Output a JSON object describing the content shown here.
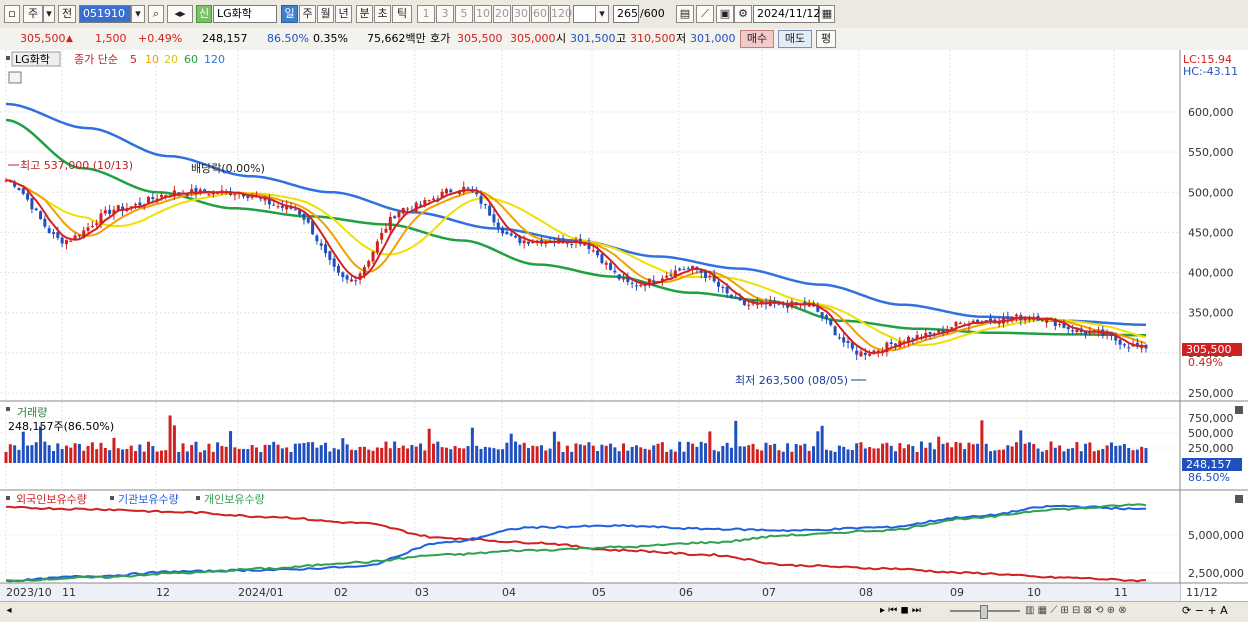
{
  "toolbar": {
    "period_label": "주",
    "prev_label": "전",
    "stock_code": "051910",
    "badge_label": "신",
    "stock_name": "LG화학",
    "tf_buttons": [
      "일",
      "주",
      "월",
      "년",
      "분",
      "초",
      "틱"
    ],
    "tf_active": "일",
    "num_buttons": [
      "1",
      "3",
      "5",
      "10",
      "20",
      "30",
      "60",
      "120"
    ],
    "count_value": "265",
    "count_total": "/600",
    "date_value": "2024/11/12"
  },
  "quote": {
    "price": "305,500",
    "change": "1,500",
    "change_pct": "+0.49%",
    "volume": "248,157",
    "vol_ratio": "86.50%",
    "turnover_pct": "0.35%",
    "amount": "75,662백만",
    "ask_label": "호가",
    "ask": "305,500",
    "bid": "305,000",
    "open_label": "시",
    "open": "301,500",
    "high_label": "고",
    "high": "310,500",
    "low_label": "저",
    "low": "301,000",
    "buy_label": "매수",
    "sell_label": "매도",
    "eval_label": "평"
  },
  "price_panel": {
    "legend_name": "LG화학",
    "legend_type": "종가 단순",
    "ma_periods": [
      "5",
      "10",
      "20",
      "60",
      "120"
    ],
    "ma_colors": [
      "#d42020",
      "#f0a000",
      "#f0e000",
      "#20a040",
      "#3070e0"
    ],
    "lc": "LC:15.94",
    "hc": "HC:-43.11",
    "y_ticks": [
      "600,000",
      "550,000",
      "500,000",
      "450,000",
      "400,000",
      "350,000",
      "300,000",
      "250,000"
    ],
    "current_price": "305,500",
    "current_pct": "0.49%",
    "max_annotation": "최고 537,000 (10/13)",
    "min_annotation": "최저 263,500 (08/05)",
    "dividend_annotation": "배당락(0.00%)"
  },
  "volume_panel": {
    "title": "거래량",
    "info": "248,157주(86.50%)",
    "y_ticks": [
      "750,000",
      "500,000",
      "250,000"
    ],
    "current": "248,157",
    "current_pct": "86.50%"
  },
  "holdings_panel": {
    "series_labels": [
      "외국인보유수량",
      "기관보유수량",
      "개인보유수량"
    ],
    "series_colors": [
      "#d02020",
      "#2060e0",
      "#30a050"
    ],
    "y_ticks": [
      "5,000,000",
      "2,500,000"
    ]
  },
  "x_axis": {
    "labels": [
      "2023/10",
      "11",
      "12",
      "2024/01",
      "02",
      "03",
      "04",
      "05",
      "06",
      "07",
      "08",
      "09",
      "10",
      "11",
      "11/12"
    ]
  },
  "chart_data": [
    {
      "type": "candlestick",
      "title": "LG화학 종가 단순",
      "x_labels": [
        "2023/10",
        "11",
        "12",
        "2024/01",
        "02",
        "03",
        "04",
        "05",
        "06",
        "07",
        "08",
        "09",
        "10",
        "11"
      ],
      "y_range": [
        240000,
        625000
      ],
      "close_approx": [
        515000,
        440000,
        480000,
        500000,
        500000,
        480000,
        390000,
        480000,
        505000,
        440000,
        440000,
        385000,
        405000,
        360000,
        360000,
        300000,
        320000,
        340000,
        345000,
        325000,
        305500
      ],
      "series": [
        {
          "name": "5",
          "key_points": [
            515000,
            440000,
            480000,
            500000,
            500000,
            480000,
            390000,
            480000,
            505000,
            440000,
            440000,
            385000,
            405000,
            360000,
            360000,
            300000,
            320000,
            340000,
            345000,
            325000,
            305500
          ]
        },
        {
          "name": "60",
          "key_points": [
            590000,
            530000,
            500000,
            480000,
            470000,
            460000,
            440000,
            410000,
            395000,
            375000,
            365000,
            340000,
            330000,
            325000,
            323000,
            322000
          ]
        },
        {
          "name": "120",
          "key_points": [
            610000,
            580000,
            545000,
            520000,
            500000,
            475000,
            455000,
            440000,
            420000,
            405000,
            385000,
            360000,
            345000,
            340000,
            335000
          ]
        }
      ],
      "max": {
        "value": 537000,
        "date": "10/13"
      },
      "min": {
        "value": 263500,
        "date": "08/05"
      },
      "last": 305500
    },
    {
      "type": "bar",
      "title": "거래량",
      "y_range": [
        0,
        800000
      ],
      "last": 248157
    },
    {
      "type": "line",
      "series": [
        {
          "name": "외국인보유수량",
          "key_points": [
            6800000,
            6700000,
            6500000,
            6200000,
            5800000,
            4800000,
            4500000,
            4000000,
            3700000,
            3000000,
            2800000,
            2500000,
            2200000,
            2000000
          ]
        },
        {
          "name": "기관보유수량",
          "key_points": [
            2000000,
            2300000,
            2600000,
            2700000,
            2900000,
            4500000,
            5500000,
            5600000,
            5400000,
            5300000,
            5500000,
            6200000,
            6900000,
            6700000
          ]
        },
        {
          "name": "개인보유수량",
          "key_points": [
            2000000,
            2200000,
            2500000,
            2800000,
            3200000,
            3700000,
            4000000,
            4200000,
            4500000,
            5000000,
            5300000,
            6100000,
            6700000,
            7000000
          ]
        }
      ],
      "y_range": [
        1500000,
        8000000
      ]
    }
  ]
}
